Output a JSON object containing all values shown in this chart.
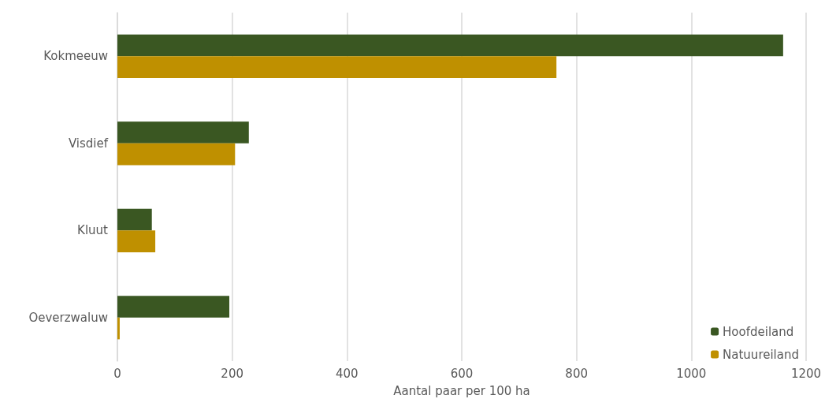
{
  "chart_data": {
    "type": "bar",
    "orientation": "horizontal",
    "xlabel": "Aantal paar per 100 ha",
    "categories": [
      "Kokmeeuw",
      "Visdief",
      "Kluut",
      "Oeverzwaluw"
    ],
    "series": [
      {
        "name": "Hoofdeiland",
        "color": "#3a5722",
        "values": [
          1160,
          229,
          60,
          195
        ]
      },
      {
        "name": "Natuureiland",
        "color": "#bf9000",
        "values": [
          765,
          205,
          66,
          4
        ]
      }
    ],
    "xlim": [
      0,
      1200
    ],
    "xticks": [
      0,
      200,
      400,
      600,
      800,
      1000,
      1200
    ],
    "grid": "x",
    "legend": "bottom right"
  }
}
